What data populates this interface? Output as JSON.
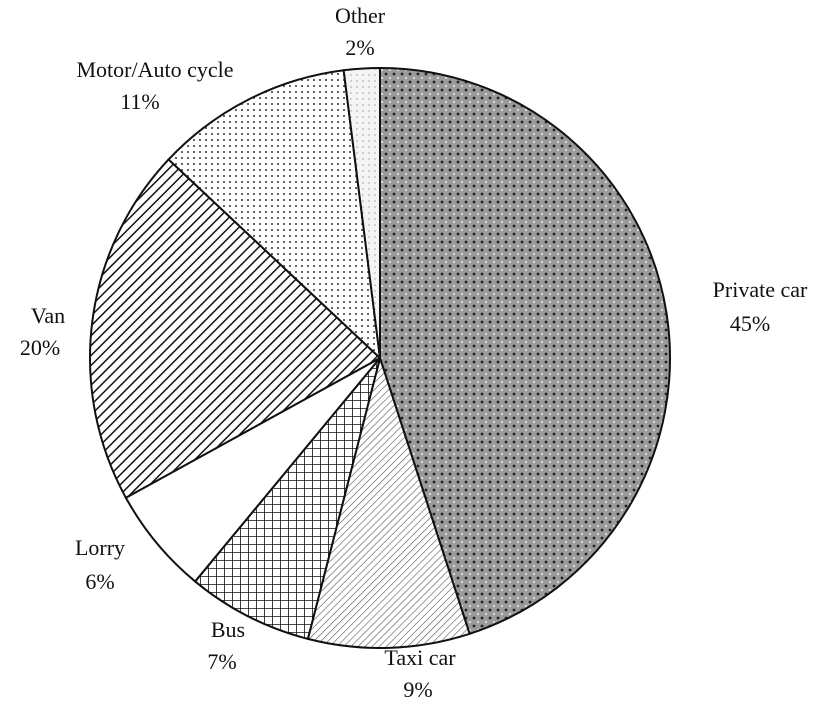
{
  "chart_data": {
    "type": "pie",
    "categories": [
      "Private car",
      "Taxi car",
      "Bus",
      "Lorry",
      "Van",
      "Motor/Auto cycle",
      "Other"
    ],
    "values": [
      45,
      9,
      7,
      6,
      20,
      11,
      2
    ],
    "value_labels": [
      "45%",
      "9%",
      "7%",
      "6%",
      "20%",
      "11%",
      "2%"
    ]
  }
}
